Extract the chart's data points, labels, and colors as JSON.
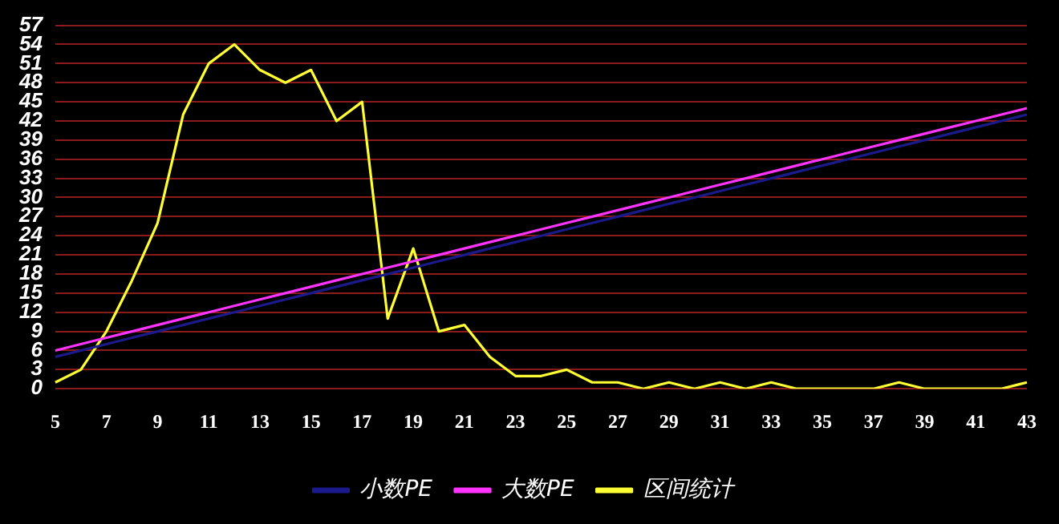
{
  "chart_data": {
    "type": "line",
    "categories": [
      "5",
      null,
      "7",
      null,
      "9",
      null,
      "11",
      null,
      "13",
      null,
      "15",
      null,
      "17",
      null,
      "19",
      null,
      "21",
      null,
      "23",
      null,
      "25",
      null,
      "27",
      null,
      "29",
      null,
      "31",
      null,
      "33",
      null,
      "35",
      null,
      "37",
      null,
      "39",
      null,
      "41",
      null,
      "43"
    ],
    "series": [
      {
        "name": "小数PE",
        "color": "#1a1a8c",
        "values": [
          5,
          6,
          7,
          8,
          9,
          10,
          11,
          12,
          13,
          14,
          15,
          16,
          17,
          18,
          19,
          20,
          21,
          22,
          23,
          24,
          25,
          26,
          27,
          28,
          29,
          30,
          31,
          32,
          33,
          34,
          35,
          36,
          37,
          38,
          39,
          40,
          41,
          42,
          43
        ]
      },
      {
        "name": "大数PE",
        "color": "#ff33ff",
        "values": [
          6,
          7,
          8,
          9,
          10,
          11,
          12,
          13,
          14,
          15,
          16,
          17,
          18,
          19,
          20,
          21,
          22,
          23,
          24,
          25,
          26,
          27,
          28,
          29,
          30,
          31,
          32,
          33,
          34,
          35,
          36,
          37,
          38,
          39,
          40,
          41,
          42,
          43,
          44
        ]
      },
      {
        "name": "区间统计",
        "color": "#ffff33",
        "values": [
          1,
          3,
          9,
          17,
          26,
          43,
          51,
          54,
          50,
          48,
          50,
          42,
          45,
          11,
          22,
          9,
          10,
          5,
          2,
          2,
          3,
          1,
          1,
          0,
          1,
          0,
          1,
          0,
          1,
          0,
          0,
          0,
          0,
          1,
          0,
          0,
          0,
          0,
          1
        ]
      }
    ],
    "ylim": [
      0,
      57
    ],
    "yticks": [
      0,
      3,
      6,
      9,
      12,
      15,
      18,
      21,
      24,
      27,
      30,
      33,
      36,
      39,
      42,
      45,
      48,
      51,
      54,
      57
    ],
    "grid": "y",
    "legend": "bottom",
    "marker": "none",
    "line_style": "solid"
  }
}
